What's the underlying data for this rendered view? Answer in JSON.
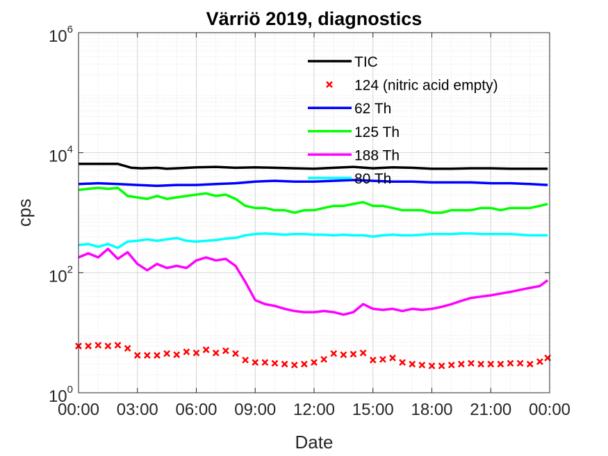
{
  "chart_data": {
    "type": "line",
    "title": "Värriö 2019, diagnostics",
    "xlabel": "Date",
    "ylabel": "cps",
    "xlim": [
      0,
      24
    ],
    "ylim": [
      1,
      1000000
    ],
    "yscale": "log",
    "grid": true,
    "minor_grid": true,
    "legend_position": "top-center",
    "x_ticks": [
      0,
      3,
      6,
      9,
      12,
      15,
      18,
      21,
      24
    ],
    "x_tick_labels": [
      "00:00",
      "03:00",
      "06:00",
      "09:00",
      "12:00",
      "15:00",
      "18:00",
      "21:00",
      "00:00"
    ],
    "y_ticks": [
      {
        "value": 1,
        "base": "10",
        "exp": "0"
      },
      {
        "value": 100,
        "base": "10",
        "exp": "2"
      },
      {
        "value": 10000,
        "base": "10",
        "exp": "4"
      },
      {
        "value": 1000000,
        "base": "10",
        "exp": "6"
      }
    ],
    "series": [
      {
        "name": "TIC",
        "style": "line",
        "color": "#000000",
        "x": [
          0,
          1,
          2,
          2.3,
          2.7,
          3.2,
          4,
          4.5,
          5,
          6,
          7,
          8,
          9,
          10,
          11,
          12,
          13,
          14,
          15,
          16,
          17,
          18,
          19,
          20,
          21,
          22,
          23,
          23.9
        ],
        "y": [
          6500,
          6500,
          6500,
          6100,
          5600,
          5500,
          5600,
          5400,
          5500,
          5700,
          5800,
          5600,
          5700,
          5600,
          5500,
          5400,
          5600,
          5800,
          5500,
          5700,
          5600,
          5400,
          5400,
          5500,
          5500,
          5400,
          5400,
          5400
        ]
      },
      {
        "name": "124 (nitric acid empty)",
        "style": "markers",
        "color": "#ff0000",
        "x": [
          0,
          0.5,
          1,
          1.5,
          2,
          2.5,
          3,
          3.5,
          4,
          4.5,
          5,
          5.5,
          6,
          6.5,
          7,
          7.5,
          8,
          8.5,
          9,
          9.5,
          10,
          10.5,
          11,
          11.5,
          12,
          12.5,
          13,
          13.5,
          14,
          14.5,
          15,
          15.5,
          16,
          16.5,
          17,
          17.5,
          18,
          18.5,
          19,
          19.5,
          20,
          20.5,
          21,
          21.5,
          22,
          22.5,
          23,
          23.5,
          23.9
        ],
        "y": [
          6,
          6,
          6.2,
          6,
          6.2,
          5.5,
          4.2,
          4.2,
          4.2,
          4.5,
          4.3,
          4.8,
          4.6,
          5.2,
          4.6,
          5,
          4.5,
          3.5,
          3.2,
          3.2,
          3.1,
          3.0,
          2.9,
          3.0,
          3.2,
          3.6,
          4.5,
          4.3,
          4.4,
          4.6,
          3.5,
          3.6,
          3.8,
          3.2,
          3.0,
          2.9,
          2.8,
          2.8,
          2.9,
          3.0,
          3.1,
          3.0,
          3.0,
          3.0,
          3.1,
          3.1,
          3.0,
          3.3,
          3.8
        ]
      },
      {
        "name": "62 Th",
        "style": "line",
        "color": "#0000ff",
        "x": [
          0,
          1,
          2,
          3,
          4,
          5,
          6,
          7,
          8,
          9,
          10,
          11,
          12,
          13,
          14,
          15,
          16,
          17,
          18,
          19,
          20,
          21,
          22,
          23,
          23.9
        ],
        "y": [
          3000,
          3100,
          3000,
          2900,
          2800,
          2900,
          2900,
          3000,
          3100,
          3300,
          3400,
          3300,
          3300,
          3400,
          3500,
          3400,
          3300,
          3300,
          3200,
          3200,
          3200,
          3100,
          3100,
          3000,
          2900
        ]
      },
      {
        "name": "125 Th",
        "style": "line",
        "color": "#00ff00",
        "x": [
          0,
          0.5,
          1,
          1.5,
          2,
          2.5,
          3,
          3.5,
          4,
          4.5,
          5,
          5.5,
          6,
          6.5,
          7,
          7.5,
          8,
          8.5,
          9,
          9.5,
          10,
          10.5,
          11,
          11.5,
          12,
          12.5,
          13,
          13.5,
          14,
          14.5,
          15,
          15.5,
          16,
          16.5,
          17,
          17.5,
          18,
          18.5,
          19,
          19.5,
          20,
          20.5,
          21,
          21.5,
          22,
          22.5,
          23,
          23.5,
          23.9
        ],
        "y": [
          2400,
          2500,
          2600,
          2500,
          2600,
          1900,
          1800,
          1700,
          1900,
          1700,
          1800,
          1900,
          2000,
          2100,
          1900,
          2000,
          1700,
          1300,
          1200,
          1200,
          1100,
          1100,
          1000,
          1100,
          1100,
          1200,
          1300,
          1300,
          1400,
          1500,
          1300,
          1300,
          1200,
          1100,
          1100,
          1100,
          1000,
          1000,
          1100,
          1100,
          1100,
          1200,
          1200,
          1100,
          1200,
          1200,
          1200,
          1300,
          1400
        ]
      },
      {
        "name": "188 Th",
        "style": "line",
        "color": "#ff00ff",
        "x": [
          0,
          0.5,
          1,
          1.5,
          2,
          2.5,
          3,
          3.5,
          4,
          4.5,
          5,
          5.5,
          6,
          6.5,
          7,
          7.5,
          8,
          8.5,
          9,
          9.5,
          10,
          10.5,
          11,
          11.5,
          12,
          12.5,
          13,
          13.5,
          14,
          14.5,
          15,
          15.5,
          16,
          16.5,
          17,
          17.5,
          18,
          18.5,
          19,
          19.5,
          20,
          20.5,
          21,
          21.5,
          22,
          22.5,
          23,
          23.5,
          23.9
        ],
        "y": [
          180,
          210,
          180,
          250,
          170,
          220,
          140,
          110,
          140,
          120,
          130,
          120,
          160,
          180,
          160,
          170,
          130,
          70,
          35,
          30,
          28,
          25,
          23,
          22,
          22,
          23,
          22,
          20,
          22,
          30,
          25,
          24,
          25,
          23,
          25,
          24,
          25,
          27,
          30,
          34,
          38,
          40,
          42,
          45,
          48,
          52,
          56,
          60,
          75
        ]
      },
      {
        "name": "80 Th",
        "style": "line",
        "color": "#00ffff",
        "x": [
          0,
          0.5,
          1,
          1.5,
          2,
          2.5,
          3,
          3.5,
          4,
          4.5,
          5,
          5.5,
          6,
          6.5,
          7,
          7.5,
          8,
          8.5,
          9,
          9.5,
          10,
          10.5,
          11,
          11.5,
          12,
          12.5,
          13,
          13.5,
          14,
          14.5,
          15,
          15.5,
          16,
          16.5,
          17,
          17.5,
          18,
          18.5,
          19,
          19.5,
          20,
          20.5,
          21,
          21.5,
          22,
          22.5,
          23,
          23.5,
          23.9
        ],
        "y": [
          290,
          300,
          270,
          300,
          260,
          330,
          340,
          360,
          340,
          360,
          380,
          340,
          330,
          340,
          350,
          370,
          380,
          420,
          440,
          450,
          440,
          430,
          440,
          440,
          430,
          430,
          420,
          430,
          420,
          420,
          400,
          420,
          430,
          420,
          420,
          430,
          440,
          440,
          440,
          450,
          450,
          440,
          440,
          440,
          440,
          430,
          420,
          420,
          420
        ]
      }
    ]
  }
}
